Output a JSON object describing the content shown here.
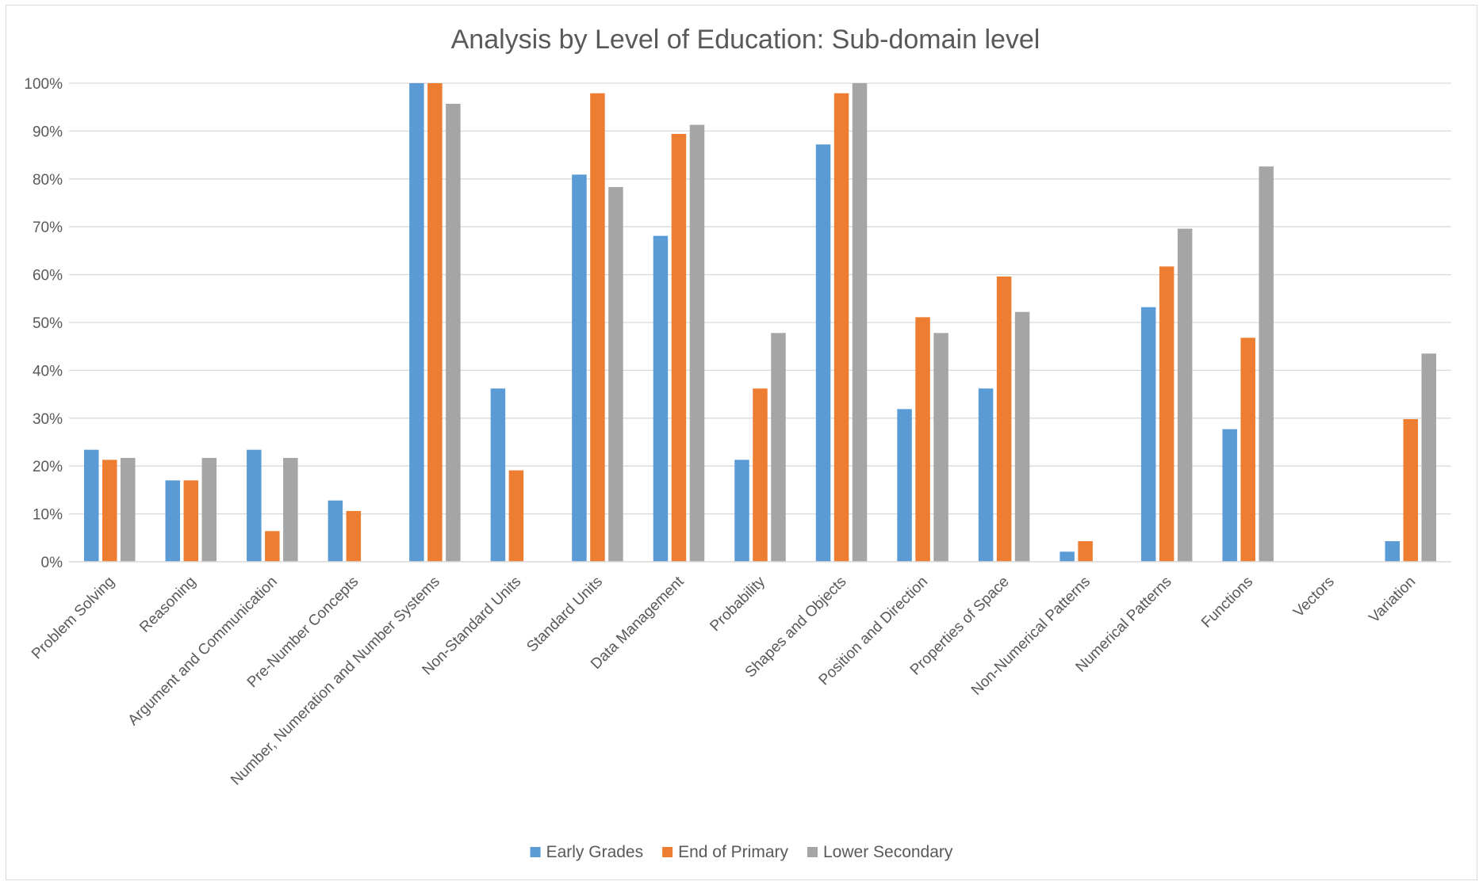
{
  "chart_data": {
    "type": "bar",
    "title": "Analysis by Level of Education: Sub-domain level",
    "xlabel": "",
    "ylabel": "",
    "ylim": [
      0,
      1
    ],
    "y_ticks": [
      "0%",
      "10%",
      "20%",
      "30%",
      "40%",
      "50%",
      "60%",
      "70%",
      "80%",
      "90%",
      "100%"
    ],
    "grid": true,
    "legend_position": "bottom",
    "categories": [
      "Problem Solving",
      "Reasoning",
      "Argument and Communication",
      "Pre-Number Concepts",
      "Number, Numeration and Number Systems",
      "Non-Standard Units",
      "Standard Units",
      "Data Management",
      "Probability",
      "Shapes and Objects",
      "Position and Direction",
      "Properties of Space",
      "Non-Numerical Patterns",
      "Numerical Patterns",
      "Functions",
      "Vectors",
      "Variation"
    ],
    "series": [
      {
        "name": "Early Grades",
        "color": "#5b9bd5",
        "values": [
          0.234,
          0.17,
          0.234,
          0.128,
          1.0,
          0.362,
          0.809,
          0.681,
          0.213,
          0.872,
          0.319,
          0.362,
          0.021,
          0.532,
          0.277,
          0.0,
          0.043
        ]
      },
      {
        "name": "End of Primary",
        "color": "#ed7d31",
        "values": [
          0.213,
          0.17,
          0.064,
          0.106,
          1.0,
          0.191,
          0.979,
          0.894,
          0.362,
          0.979,
          0.511,
          0.596,
          0.043,
          0.617,
          0.468,
          0.0,
          0.298
        ]
      },
      {
        "name": "Lower Secondary",
        "color": "#a5a5a5",
        "values": [
          0.217,
          0.217,
          0.217,
          0.0,
          0.957,
          0.0,
          0.783,
          0.913,
          0.478,
          1.0,
          0.478,
          0.522,
          0.0,
          0.696,
          0.826,
          0.0,
          0.435
        ]
      }
    ]
  }
}
